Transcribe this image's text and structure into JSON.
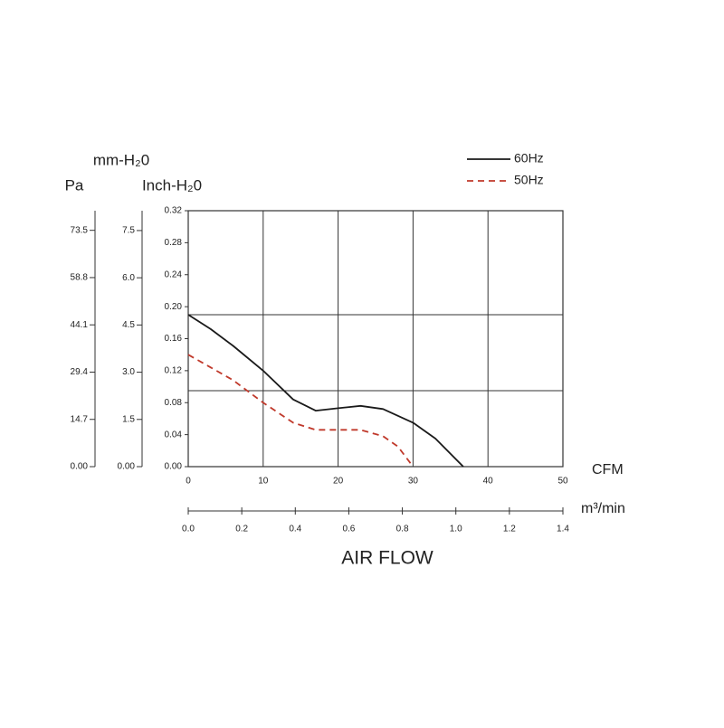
{
  "chart_data": {
    "type": "line",
    "title": "AIR FLOW",
    "xlabel": "CFM",
    "xlim": [
      0,
      50
    ],
    "xticks": [
      0,
      10,
      20,
      30,
      40,
      50
    ],
    "x2label": "m³/min",
    "x2lim": [
      0,
      1.4
    ],
    "x2ticks": [
      {
        "value": 0,
        "label": "0.0"
      },
      0.2,
      0.4,
      0.6,
      0.8,
      {
        "value": 1,
        "label": "1.0"
      },
      1.2,
      1.4
    ],
    "ylabel": "Inch-H₂0",
    "ylim": [
      0,
      0.32
    ],
    "yticks": [
      {
        "value": 0,
        "label": "0.00"
      },
      0.04,
      0.08,
      0.12,
      0.16,
      {
        "value": 0.2,
        "label": "0.20"
      },
      0.24,
      0.28,
      0.32
    ],
    "y2label": "mm-H₂0",
    "y2lim": [
      0,
      8.13
    ],
    "y2ticks": [
      {
        "value": 0,
        "label": "0.00"
      },
      1.5,
      {
        "value": 3,
        "label": "3.0"
      },
      4.5,
      {
        "value": 6,
        "label": "6.0"
      },
      7.5
    ],
    "y3label": "Pa",
    "y3lim": [
      0,
      79.6
    ],
    "y3ticks": [
      {
        "value": 0,
        "label": "0.00"
      },
      14.7,
      29.4,
      44.1,
      58.8,
      73.5
    ],
    "grid": true,
    "ygrid": [
      0.095,
      0.19
    ],
    "legend": "upper right",
    "series": [
      {
        "name": "60Hz",
        "color": "#1a1a1a",
        "line_style": "solid",
        "x": [
          0,
          3,
          6,
          10,
          14,
          17,
          20,
          23,
          26,
          30,
          33,
          36.7
        ],
        "values": [
          0.19,
          0.172,
          0.151,
          0.12,
          0.084,
          0.07,
          0.073,
          0.076,
          0.072,
          0.055,
          0.035,
          0
        ]
      },
      {
        "name": "50Hz",
        "color": "#c0392b",
        "line_style": "dashed",
        "x": [
          0,
          3,
          6,
          10,
          14,
          17,
          20,
          23,
          26,
          28,
          30
        ],
        "values": [
          0.14,
          0.124,
          0.108,
          0.08,
          0.055,
          0.046,
          0.046,
          0.046,
          0.038,
          0.025,
          0
        ]
      }
    ]
  }
}
